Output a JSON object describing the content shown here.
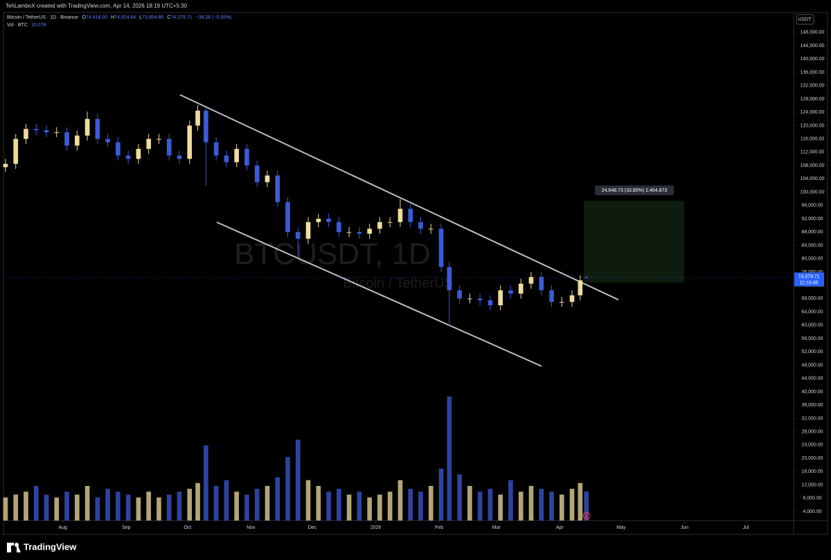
{
  "header": {
    "credit": "TehLamboX created with TradingView.com, Apr 14, 2026 18:19 UTC+5:30"
  },
  "footer": {
    "brand": "TradingView"
  },
  "chart_data": {
    "type": "candlestick",
    "symbol": "Bitcoin / TetherUS · 1D · Binance",
    "legend": {
      "o": "O",
      "o_value": "74,418.00",
      "h": "H",
      "h_value": "74,924.64",
      "l": "L",
      "l_value": "73,954.86",
      "c": "C",
      "c_value": "74,379.71",
      "change": "−38.28 (−0.05%)",
      "vol": "Vol · BTC",
      "vol_value": "10.07K"
    },
    "watermark": {
      "ticker": "BTCUSDT, 1D",
      "name": "Bitcoin / TetherUS"
    },
    "currency": "USDT",
    "price_label": "74,379.71",
    "countdown": "11:10:45",
    "measure_label": "24,648.73 (33.85%) 2,464,873",
    "up_color": "#efdc9c",
    "down_color": "#3d5ad6",
    "grid": false,
    "x": [
      "2025-07-04",
      "2025-07-09",
      "2025-07-14",
      "2025-07-19",
      "2025-07-24",
      "2025-07-29",
      "2025-08-03",
      "2025-08-08",
      "2025-08-13",
      "2025-08-18",
      "2025-08-23",
      "2025-08-28",
      "2025-09-02",
      "2025-09-07",
      "2025-09-12",
      "2025-09-17",
      "2025-09-22",
      "2025-09-27",
      "2025-10-02",
      "2025-10-06",
      "2025-10-10",
      "2025-10-15",
      "2025-10-20",
      "2025-10-25",
      "2025-10-30",
      "2025-11-04",
      "2025-11-09",
      "2025-11-14",
      "2025-11-19",
      "2025-11-24",
      "2025-11-29",
      "2025-12-04",
      "2025-12-09",
      "2025-12-14",
      "2025-12-19",
      "2025-12-24",
      "2025-12-29",
      "2026-01-03",
      "2026-01-08",
      "2026-01-13",
      "2026-01-18",
      "2026-01-23",
      "2026-01-28",
      "2026-02-02",
      "2026-02-06",
      "2026-02-11",
      "2026-02-16",
      "2026-02-21",
      "2026-02-26",
      "2026-03-03",
      "2026-03-08",
      "2026-03-13",
      "2026-03-18",
      "2026-03-23",
      "2026-03-28",
      "2026-04-02",
      "2026-04-07",
      "2026-04-11",
      "2026-04-14"
    ],
    "open": [
      107500,
      108500,
      116000,
      119000,
      118600,
      118000,
      118000,
      114000,
      117000,
      122000,
      116000,
      115000,
      111000,
      110000,
      113000,
      116000,
      116000,
      111000,
      110000,
      120000,
      124500,
      115000,
      111000,
      109000,
      113000,
      108000,
      103000,
      105000,
      97000,
      88000,
      86000,
      91000,
      92000,
      91000,
      88000,
      88000,
      87500,
      89000,
      91000,
      91000,
      95000,
      91000,
      89000,
      89000,
      77500,
      70500,
      68000,
      68000,
      67500,
      66000,
      70500,
      69500,
      72500,
      74500,
      70500,
      67000,
      67000,
      69000,
      74418
    ],
    "high": [
      110000,
      117500,
      120500,
      120500,
      120100,
      119500,
      119500,
      118500,
      124200,
      123500,
      117500,
      116500,
      112500,
      114500,
      117500,
      117500,
      117500,
      112500,
      121500,
      126200,
      125500,
      116500,
      112500,
      114500,
      114500,
      109500,
      106500,
      106500,
      98500,
      89500,
      92500,
      93500,
      93500,
      92500,
      89500,
      89500,
      90500,
      92500,
      92500,
      97900,
      96500,
      92500,
      90500,
      90500,
      79000,
      72000,
      69500,
      69500,
      69000,
      72000,
      72000,
      74000,
      76000,
      76000,
      72000,
      68500,
      70500,
      75000,
      74924.64
    ],
    "low": [
      106000,
      107000,
      114500,
      117100,
      116500,
      116500,
      112500,
      112500,
      115500,
      114500,
      113500,
      109500,
      108500,
      108500,
      111500,
      114500,
      109500,
      108500,
      108500,
      118500,
      102000,
      109500,
      107500,
      107500,
      106500,
      101500,
      101500,
      95500,
      86500,
      80500,
      84500,
      89500,
      89500,
      86500,
      86500,
      86000,
      86000,
      87500,
      89500,
      89500,
      89500,
      87500,
      87500,
      76000,
      60000,
      66500,
      66500,
      66000,
      64500,
      64500,
      68000,
      68000,
      71000,
      69000,
      65500,
      65500,
      65500,
      67500,
      73954.86
    ],
    "close": [
      108500,
      116000,
      119000,
      118600,
      118000,
      118000,
      114000,
      117000,
      122000,
      116000,
      115000,
      111000,
      110000,
      113000,
      116000,
      116000,
      111000,
      110000,
      120000,
      124500,
      115000,
      111000,
      109000,
      113000,
      108000,
      103000,
      105000,
      97000,
      88000,
      86000,
      91000,
      92000,
      91000,
      88000,
      88000,
      87500,
      89000,
      91000,
      91000,
      95000,
      91000,
      89000,
      89000,
      77500,
      70500,
      68000,
      68000,
      67500,
      66000,
      70500,
      69500,
      72500,
      74500,
      70500,
      67000,
      67000,
      69000,
      73500,
      74379.71
    ],
    "volume": [
      8,
      9,
      10,
      12,
      9,
      8,
      10,
      9,
      12,
      8,
      11,
      10,
      9,
      8,
      10,
      8,
      9,
      10,
      11,
      13,
      26,
      12,
      14,
      10,
      9,
      11,
      12,
      15,
      22,
      28,
      14,
      12,
      10,
      11,
      9,
      10,
      8,
      9,
      10,
      14,
      11,
      10,
      12,
      18,
      43,
      16,
      12,
      10,
      11,
      9,
      14,
      10,
      12,
      11,
      10,
      9,
      11,
      13,
      10.07
    ],
    "xlim": [
      "2025-07-03",
      "2026-07-24"
    ],
    "xticks": [
      {
        "value": "2025-08-01",
        "label": "Aug"
      },
      {
        "value": "2025-09-01",
        "label": "Sep"
      },
      {
        "value": "2025-10-01",
        "label": "Oct"
      },
      {
        "value": "2025-11-01",
        "label": "Nov"
      },
      {
        "value": "2025-12-01",
        "label": "Dec"
      },
      {
        "value": "2026-01-01",
        "label": "2026"
      },
      {
        "value": "2026-02-01",
        "label": "Feb"
      },
      {
        "value": "2026-03-01",
        "label": "Mar"
      },
      {
        "value": "2026-04-01",
        "label": "Apr"
      },
      {
        "value": "2026-05-01",
        "label": "May"
      },
      {
        "value": "2026-06-01",
        "label": "Jun"
      },
      {
        "value": "2026-07-01",
        "label": "Jul"
      }
    ],
    "ylim": [
      1300,
      154000
    ],
    "yticks": [
      {
        "value": 4000,
        "label": "4,000.00"
      },
      {
        "value": 8000,
        "label": "8,000.00"
      },
      {
        "value": 12000,
        "label": "12,000.00"
      },
      {
        "value": 16000,
        "label": "16,000.00"
      },
      {
        "value": 20000,
        "label": "20,000.00"
      },
      {
        "value": 24000,
        "label": "24,000.00"
      },
      {
        "value": 28000,
        "label": "28,000.00"
      },
      {
        "value": 32000,
        "label": "32,000.00"
      },
      {
        "value": 36000,
        "label": "36,000.00"
      },
      {
        "value": 40000,
        "label": "40,000.00"
      },
      {
        "value": 44000,
        "label": "44,000.00"
      },
      {
        "value": 48000,
        "label": "48,000.00"
      },
      {
        "value": 52000,
        "label": "52,000.00"
      },
      {
        "value": 56000,
        "label": "56,000.00"
      },
      {
        "value": 60000,
        "label": "60,000.00"
      },
      {
        "value": 64000,
        "label": "64,000.00"
      },
      {
        "value": 68000,
        "label": "68,000.00"
      },
      {
        "value": 72000,
        "label": "72,000.00"
      },
      {
        "value": 76000,
        "label": "76,000.00"
      },
      {
        "value": 80000,
        "label": "80,000.00"
      },
      {
        "value": 84000,
        "label": "84,000.00"
      },
      {
        "value": 88000,
        "label": "88,000.00"
      },
      {
        "value": 92000,
        "label": "92,000.00"
      },
      {
        "value": 96000,
        "label": "96,000.00"
      },
      {
        "value": 100000,
        "label": "100,000.00"
      },
      {
        "value": 104000,
        "label": "104,000.00"
      },
      {
        "value": 108000,
        "label": "108,000.00"
      },
      {
        "value": 112000,
        "label": "112,000.00"
      },
      {
        "value": 116000,
        "label": "116,000.00"
      },
      {
        "value": 120000,
        "label": "120,000.00"
      },
      {
        "value": 124000,
        "label": "124,000.00"
      },
      {
        "value": 128000,
        "label": "128,000.00"
      },
      {
        "value": 132000,
        "label": "132,000.00"
      },
      {
        "value": 136000,
        "label": "136,000.00"
      },
      {
        "value": 140000,
        "label": "140,000.00"
      },
      {
        "value": 144000,
        "label": "144,000.00"
      },
      {
        "value": 148000,
        "label": "148,000.00"
      }
    ]
  }
}
